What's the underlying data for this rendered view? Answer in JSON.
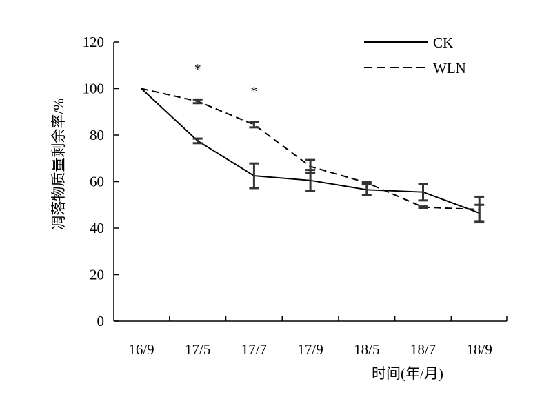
{
  "chart_data": {
    "type": "line",
    "title": "",
    "xlabel": "时间(年/月)",
    "ylabel": "凋落物质量剩余率/%",
    "categories": [
      "16/9",
      "17/5",
      "17/7",
      "17/9",
      "18/5",
      "18/7",
      "18/9"
    ],
    "ylim": [
      0,
      120
    ],
    "yticks": [
      0,
      20,
      40,
      60,
      80,
      100,
      120
    ],
    "grid": false,
    "legend_position": "top-right",
    "series": [
      {
        "name": "CK",
        "line_style": "solid",
        "color": "#000000",
        "values": [
          100,
          77.5,
          62.5,
          60.5,
          56.5,
          55.5,
          46.5
        ],
        "errors": [
          0,
          1.0,
          5.3,
          4.5,
          2.3,
          3.6,
          3.5
        ]
      },
      {
        "name": "WLN",
        "line_style": "dashed",
        "color": "#000000",
        "values": [
          100,
          94.5,
          84.5,
          66.5,
          59.5,
          49.0,
          48.0
        ],
        "errors": [
          0,
          0.8,
          1.2,
          2.8,
          0.5,
          0.3,
          5.5
        ]
      }
    ],
    "annotations": [
      {
        "text": "*",
        "category": "17/5"
      },
      {
        "text": "*",
        "category": "17/7"
      }
    ]
  }
}
